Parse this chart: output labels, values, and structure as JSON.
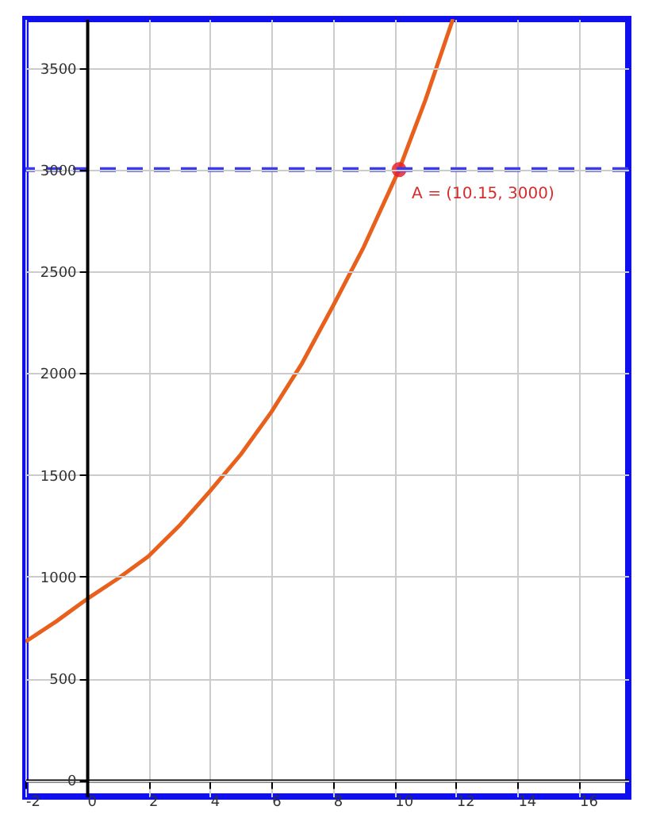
{
  "chart_data": {
    "type": "line",
    "xlim": [
      -2,
      17.6
    ],
    "ylim": [
      -80,
      3740
    ],
    "xticks": [
      {
        "value": -2,
        "label": "-2"
      },
      0,
      2,
      4,
      6,
      8,
      10,
      12,
      14,
      16
    ],
    "yticks": [
      0,
      500,
      1000,
      1500,
      2000,
      2500,
      3000,
      3500
    ],
    "grid": true,
    "series": [
      {
        "color": "#e8601c",
        "x": [
          -2,
          -1,
          0,
          1,
          2,
          3,
          4,
          5,
          6,
          7,
          8,
          9,
          10.15,
          11,
          11.9
        ],
        "values": [
          680,
          780,
          890,
          990,
          1100,
          1250,
          1420,
          1600,
          1810,
          2050,
          2330,
          2620,
          3000,
          3340,
          3740
        ]
      },
      {
        "type": "scatter",
        "color": "#e8232b",
        "marker": "circle",
        "x": [
          10.15
        ],
        "values": [
          3000
        ]
      }
    ],
    "ref_lines": [
      {
        "axis": "y",
        "value": 3000,
        "color": "#3b3bf0",
        "line_style": "dashed"
      }
    ],
    "annotations": [
      {
        "text": "A = (10.15, 3000)",
        "x": 10.15,
        "y": 3000
      }
    ]
  }
}
